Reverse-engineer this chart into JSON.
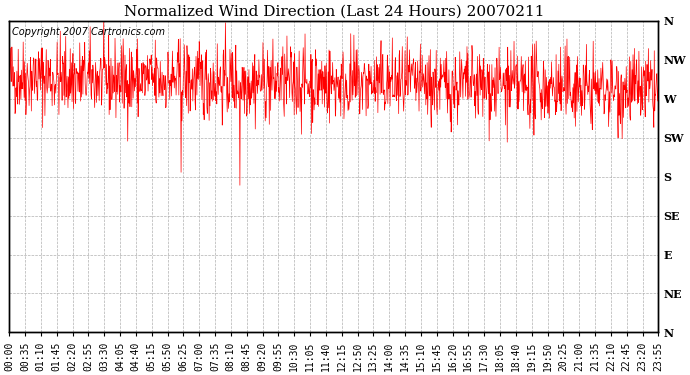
{
  "title": "Normalized Wind Direction (Last 24 Hours) 20070211",
  "copyright_text": "Copyright 2007 Cartronics.com",
  "line_color": "#ff0000",
  "background_color": "#ffffff",
  "plot_bg_color": "#ffffff",
  "grid_color": "#b0b0b0",
  "ytick_labels": [
    "N",
    "NW",
    "W",
    "SW",
    "S",
    "SE",
    "E",
    "NE",
    "N"
  ],
  "ytick_values": [
    360,
    315,
    270,
    225,
    180,
    135,
    90,
    45,
    0
  ],
  "ylim": [
    0,
    360
  ],
  "xlim_minutes": [
    0,
    1435
  ],
  "xtick_minutes": [
    0,
    35,
    70,
    105,
    140,
    175,
    210,
    245,
    280,
    315,
    350,
    385,
    420,
    455,
    490,
    525,
    560,
    595,
    630,
    665,
    700,
    735,
    770,
    805,
    840,
    875,
    910,
    945,
    980,
    1015,
    1050,
    1085,
    1120,
    1155,
    1190,
    1225,
    1260,
    1295,
    1330,
    1365,
    1400,
    1435
  ],
  "xtick_labels": [
    "00:00",
    "00:35",
    "01:10",
    "01:45",
    "02:20",
    "02:55",
    "03:30",
    "04:05",
    "04:40",
    "05:15",
    "05:50",
    "06:25",
    "07:00",
    "07:35",
    "08:10",
    "08:45",
    "09:20",
    "09:55",
    "10:30",
    "11:05",
    "11:40",
    "12:15",
    "12:50",
    "13:25",
    "14:00",
    "14:35",
    "15:10",
    "15:45",
    "16:20",
    "16:55",
    "17:30",
    "18:05",
    "18:40",
    "19:15",
    "19:50",
    "20:25",
    "21:00",
    "21:35",
    "22:10",
    "22:45",
    "23:20",
    "23:55"
  ],
  "title_fontsize": 11,
  "copyright_fontsize": 7,
  "axis_fontsize": 7,
  "ytick_fontsize": 8,
  "seed": 42,
  "noise_std": 22,
  "base_direction": 295,
  "figsize": [
    6.9,
    3.75
  ],
  "dpi": 100
}
